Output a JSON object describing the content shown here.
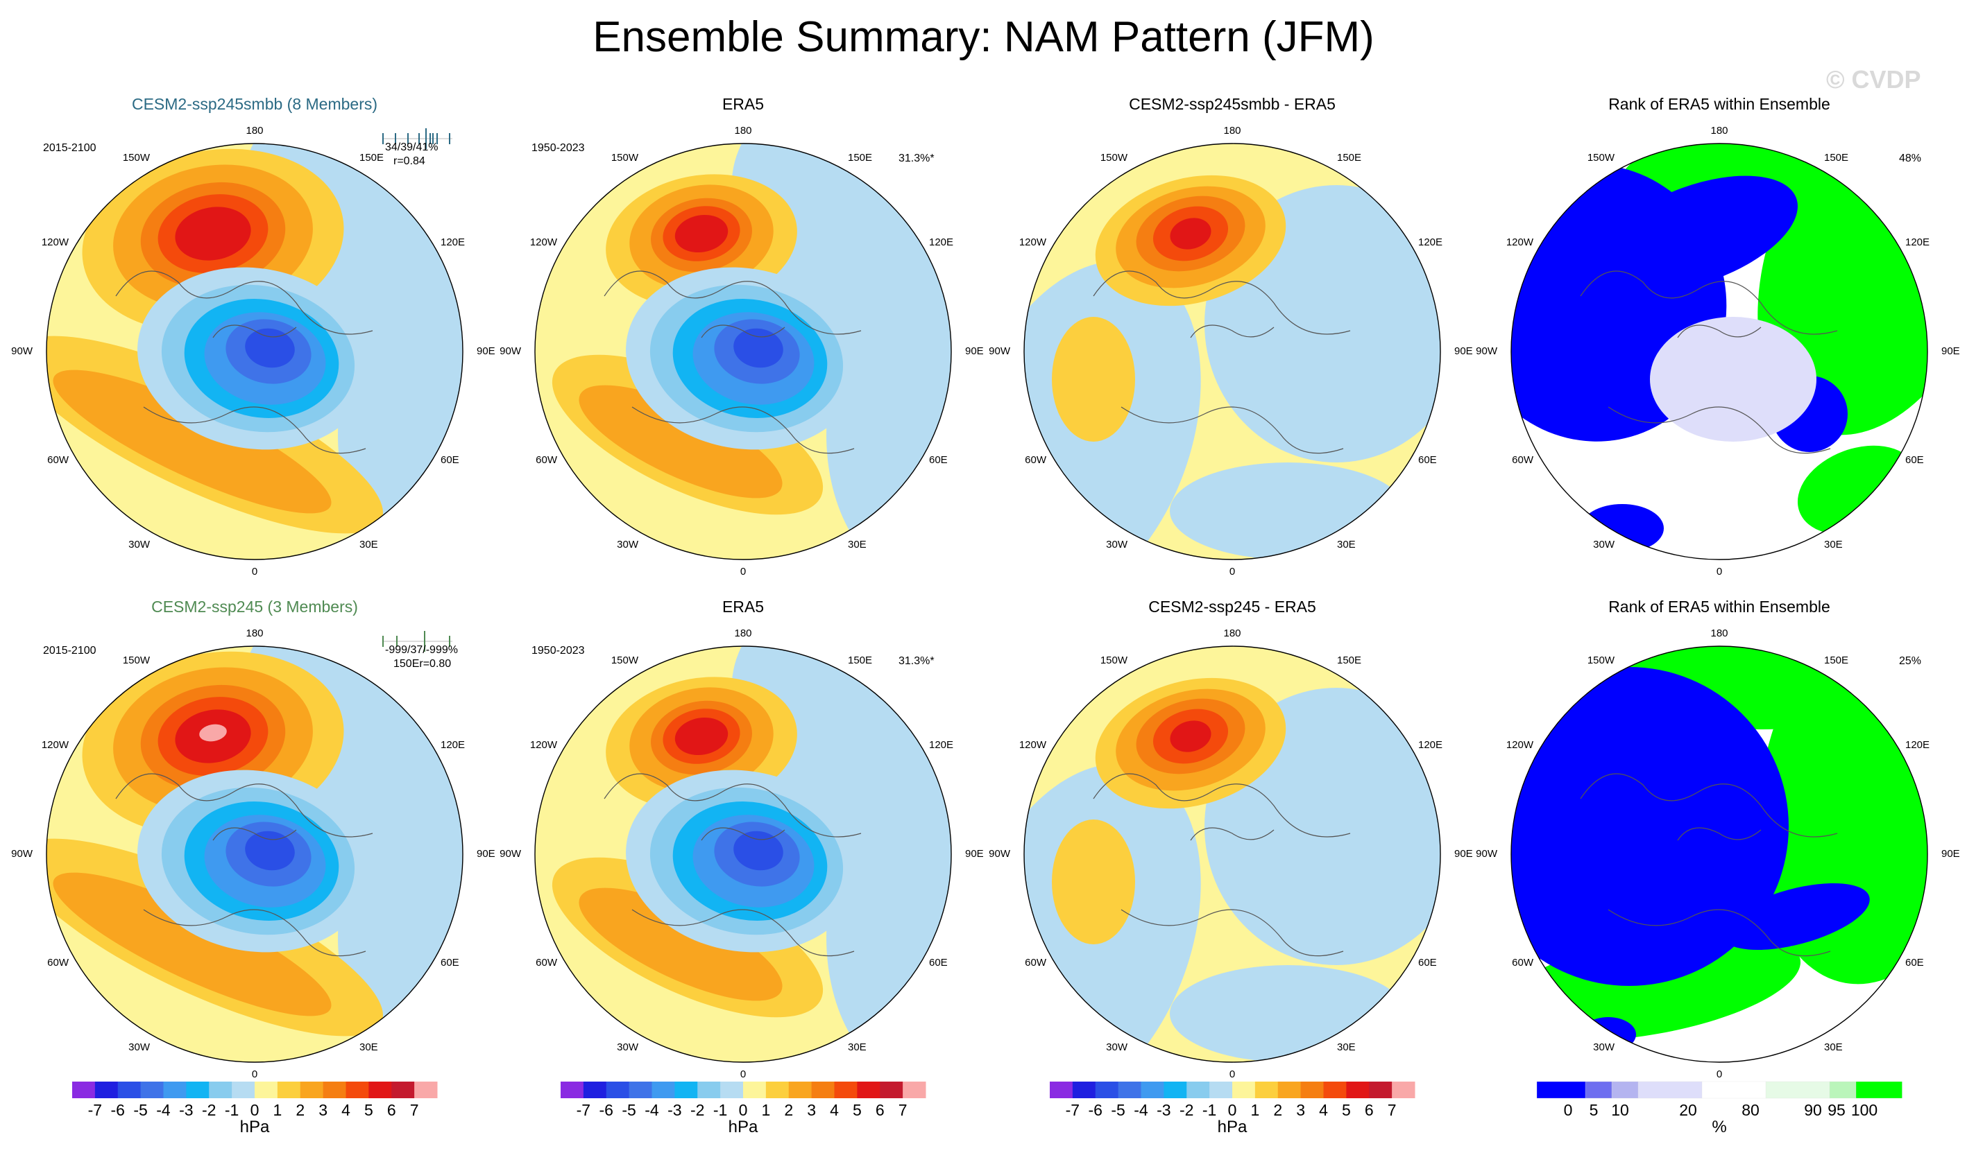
{
  "figure": {
    "title": "Ensemble Summary: NAM Pattern (JFM)",
    "watermark": "© CVDP"
  },
  "panels": [
    {
      "id": "r1c1",
      "title": "CESM2-ssp245smbb (8 Members)",
      "title_color": "#2b6a84",
      "period": "2015-2100",
      "stats": "34/39/41%",
      "corr": "r=0.84",
      "pct": "",
      "kind": "model"
    },
    {
      "id": "r1c2",
      "title": "ERA5",
      "title_color": "#000000",
      "period": "1950-2023",
      "stats": "",
      "corr": "",
      "pct": "31.3%*",
      "kind": "obs"
    },
    {
      "id": "r1c3",
      "title": "CESM2-ssp245smbb - ERA5",
      "title_color": "#000000",
      "period": "",
      "stats": "",
      "corr": "",
      "pct": "",
      "kind": "diff"
    },
    {
      "id": "r1c4",
      "title": "Rank of ERA5 within Ensemble",
      "title_color": "#000000",
      "period": "",
      "stats": "",
      "corr": "",
      "pct": "48%",
      "kind": "rank"
    },
    {
      "id": "r2c1",
      "title": "CESM2-ssp245 (3 Members)",
      "title_color": "#4f8a52",
      "period": "2015-2100",
      "stats": "-999/37/-999%",
      "corr": "150Er=0.80",
      "pct": "",
      "kind": "model"
    },
    {
      "id": "r2c2",
      "title": "ERA5",
      "title_color": "#000000",
      "period": "1950-2023",
      "stats": "",
      "corr": "",
      "pct": "31.3%*",
      "kind": "obs"
    },
    {
      "id": "r2c3",
      "title": "CESM2-ssp245 - ERA5",
      "title_color": "#000000",
      "period": "",
      "stats": "",
      "corr": "",
      "pct": "",
      "kind": "diff"
    },
    {
      "id": "r2c4",
      "title": "Rank of ERA5 within Ensemble",
      "title_color": "#000000",
      "period": "",
      "stats": "",
      "corr": "",
      "pct": "25%",
      "kind": "rank"
    }
  ],
  "longitude_labels": [
    "180",
    "150E",
    "120E",
    "90E",
    "60E",
    "30E",
    "0",
    "30W",
    "60W",
    "90W",
    "120W",
    "150W"
  ],
  "chart_data": [
    {
      "type": "heatmap",
      "projection": "north-polar-stereographic",
      "variable": "NAM Pattern (JFM) regression",
      "colorbar": {
        "unit": "hPa",
        "tick_labels": [
          "-7",
          "-6",
          "-5",
          "-4",
          "-3",
          "-2",
          "-1",
          "0",
          "1",
          "2",
          "3",
          "4",
          "5",
          "6",
          "7"
        ],
        "colors": [
          "#8a2be2",
          "#1f1fe0",
          "#2a4fe6",
          "#3f73e8",
          "#3f9af0",
          "#12b4f3",
          "#88ccee",
          "#b6dcf2",
          "#fdf59a",
          "#fccf3e",
          "#f9a51f",
          "#f57e12",
          "#f44a0c",
          "#e11616",
          "#c41a2e",
          "#f9a8a8"
        ]
      },
      "panels": [
        "r1c1",
        "r1c2",
        "r1c3",
        "r2c1",
        "r2c2",
        "r2c3"
      ]
    },
    {
      "type": "heatmap",
      "projection": "north-polar-stereographic",
      "variable": "Rank of ERA5 within Ensemble",
      "colorbar": {
        "unit": "%",
        "tick_labels": [
          "0",
          "5",
          "10",
          "20",
          "80",
          "90",
          "95",
          "100"
        ],
        "colors": [
          "#0000ff",
          "#6e6ef0",
          "#b4b4f0",
          "#dedefa",
          "#ffffff",
          "#e6fae6",
          "#baf5ba",
          "#00ff00"
        ]
      },
      "panels": [
        "r1c4",
        "r2c4"
      ]
    }
  ]
}
